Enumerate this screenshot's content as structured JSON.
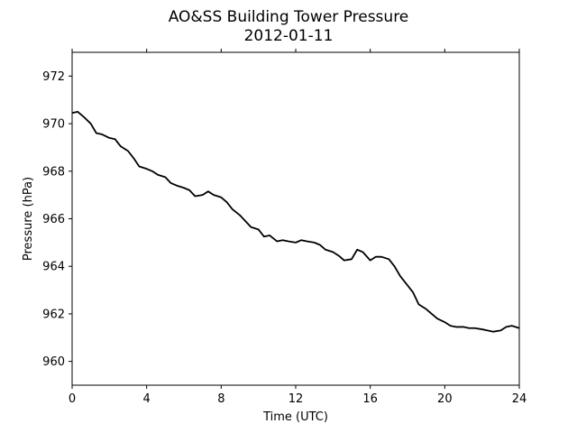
{
  "chart_data": {
    "type": "line",
    "title": "AO&SS Building Tower Pressure",
    "subtitle": "2012-01-11",
    "xlabel": "Time (UTC)",
    "ylabel": "Pressure (hPa)",
    "xlim": [
      0,
      24
    ],
    "ylim": [
      959,
      973
    ],
    "xticks": [
      0,
      4,
      8,
      12,
      16,
      20,
      24
    ],
    "yticks": [
      960,
      962,
      964,
      966,
      968,
      970,
      972
    ],
    "grid": false,
    "line_color": "#000000",
    "series": [
      {
        "x": [
          0,
          0.3,
          0.6,
          1.0,
          1.3,
          1.6,
          2.0,
          2.3,
          2.6,
          3.0,
          3.3,
          3.6,
          4.0,
          4.3,
          4.6,
          5.0,
          5.3,
          5.6,
          6.0,
          6.3,
          6.6,
          7.0,
          7.3,
          7.6,
          8.0,
          8.3,
          8.6,
          9.0,
          9.3,
          9.6,
          10.0,
          10.3,
          10.6,
          11.0,
          11.3,
          11.6,
          12.0,
          12.3,
          12.6,
          13.0,
          13.3,
          13.6,
          14.0,
          14.3,
          14.6,
          15.0,
          15.3,
          15.6,
          16.0,
          16.3,
          16.6,
          17.0,
          17.3,
          17.6,
          18.0,
          18.3,
          18.6,
          19.0,
          19.3,
          19.6,
          20.0,
          20.3,
          20.6,
          21.0,
          21.3,
          21.6,
          22.0,
          22.3,
          22.6,
          23.0,
          23.3,
          23.6,
          24.0
        ],
        "values": [
          970.45,
          970.5,
          970.3,
          970.0,
          969.6,
          969.55,
          969.4,
          969.35,
          969.05,
          968.85,
          968.55,
          968.2,
          968.1,
          968.0,
          967.85,
          967.75,
          967.5,
          967.4,
          967.3,
          967.2,
          966.95,
          967.0,
          967.15,
          967.0,
          966.9,
          966.7,
          966.4,
          966.15,
          965.9,
          965.65,
          965.55,
          965.25,
          965.3,
          965.05,
          965.1,
          965.05,
          965.0,
          965.1,
          965.05,
          965.0,
          964.9,
          964.7,
          964.6,
          964.45,
          964.25,
          964.3,
          964.7,
          964.6,
          964.25,
          964.4,
          964.4,
          964.3,
          964.0,
          963.6,
          963.2,
          962.9,
          962.4,
          962.2,
          962.0,
          961.8,
          961.65,
          961.5,
          961.45,
          961.45,
          961.4,
          961.4,
          961.35,
          961.3,
          961.25,
          961.3,
          961.45,
          961.5,
          961.4
        ]
      }
    ]
  }
}
